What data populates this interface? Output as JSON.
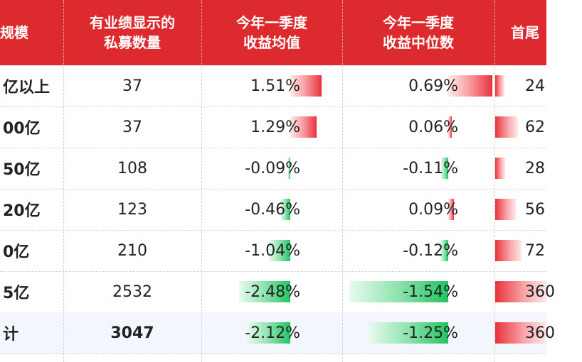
{
  "headers": {
    "scale": "规模",
    "count": "有业绩显示的\n私募数量",
    "q1_mean": "今年一季度\n收益均值",
    "q1_median": "今年一季度\n收益中位数",
    "spread": "首尾"
  },
  "rows": [
    {
      "label": "亿以上",
      "count": "37",
      "mean": "1.51%",
      "median": "0.69%",
      "spread": "24",
      "mean_val": 1.51,
      "median_val": 0.69,
      "spread_frac": 0.18
    },
    {
      "label": "00亿",
      "count": "37",
      "mean": "1.29%",
      "median": "0.06%",
      "spread": "62",
      "mean_val": 1.29,
      "median_val": 0.06,
      "spread_frac": 0.45
    },
    {
      "label": "50亿",
      "count": "108",
      "mean": "-0.09%",
      "median": "-0.11%",
      "spread": "28",
      "mean_val": -0.09,
      "median_val": -0.11,
      "spread_frac": 0.2
    },
    {
      "label": "20亿",
      "count": "123",
      "mean": "-0.46%",
      "median": "0.09%",
      "spread": "56",
      "mean_val": -0.46,
      "median_val": 0.09,
      "spread_frac": 0.4
    },
    {
      "label": "0亿",
      "count": "210",
      "mean": "-1.04%",
      "median": "-0.12%",
      "spread": "72",
      "mean_val": -1.04,
      "median_val": -0.12,
      "spread_frac": 0.52
    },
    {
      "label": "5亿",
      "count": "2532",
      "mean": "-2.48%",
      "median": "-1.54%",
      "spread": "360",
      "mean_val": -2.48,
      "median_val": -1.54,
      "spread_frac": 1.0
    },
    {
      "label": "计",
      "count": "3047",
      "mean": "-2.12%",
      "median": "-1.25%",
      "spread": "360",
      "mean_val": -2.12,
      "median_val": -1.25,
      "spread_frac": 1.0,
      "total": true
    }
  ],
  "colors": {
    "header_bg": "#dc2a2f",
    "positive_bar": "#e8323b",
    "negative_bar": "#22c463",
    "total_row_bg": "#f3f6fc"
  }
}
